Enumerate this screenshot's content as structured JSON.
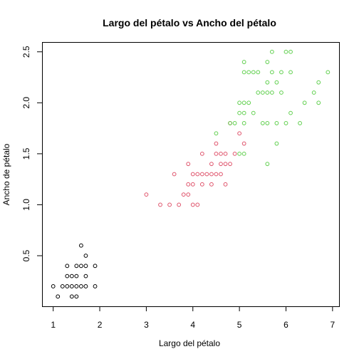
{
  "chart_data": {
    "type": "scatter",
    "title": "Largo del pétalo vs Ancho del pétalo",
    "xlabel": "Largo del pétalo",
    "ylabel": "Ancho de pétalo",
    "xlim": [
      0.76,
      7.14
    ],
    "ylim": [
      0.004,
      2.596
    ],
    "xticks": [
      "1",
      "2",
      "3",
      "4",
      "5",
      "6",
      "7"
    ],
    "yticks": [
      "0.5",
      "1.0",
      "1.5",
      "2.0",
      "2.5"
    ],
    "grid": false,
    "legend": "none",
    "series": [
      {
        "color": "#000000",
        "points": [
          [
            1.0,
            0.2
          ],
          [
            1.1,
            0.1
          ],
          [
            1.2,
            0.2
          ],
          [
            1.3,
            0.2
          ],
          [
            1.3,
            0.3
          ],
          [
            1.3,
            0.4
          ],
          [
            1.4,
            0.1
          ],
          [
            1.4,
            0.2
          ],
          [
            1.4,
            0.3
          ],
          [
            1.5,
            0.1
          ],
          [
            1.5,
            0.2
          ],
          [
            1.5,
            0.3
          ],
          [
            1.5,
            0.4
          ],
          [
            1.6,
            0.2
          ],
          [
            1.6,
            0.4
          ],
          [
            1.6,
            0.6
          ],
          [
            1.7,
            0.2
          ],
          [
            1.7,
            0.3
          ],
          [
            1.7,
            0.4
          ],
          [
            1.7,
            0.5
          ],
          [
            1.9,
            0.2
          ],
          [
            1.9,
            0.4
          ]
        ]
      },
      {
        "color": "#DF536B",
        "points": [
          [
            3.0,
            1.1
          ],
          [
            3.3,
            1.0
          ],
          [
            3.5,
            1.0
          ],
          [
            3.6,
            1.3
          ],
          [
            3.7,
            1.0
          ],
          [
            3.8,
            1.1
          ],
          [
            3.9,
            1.1
          ],
          [
            3.9,
            1.2
          ],
          [
            3.9,
            1.4
          ],
          [
            4.0,
            1.0
          ],
          [
            4.0,
            1.2
          ],
          [
            4.0,
            1.3
          ],
          [
            4.1,
            1.0
          ],
          [
            4.1,
            1.3
          ],
          [
            4.2,
            1.2
          ],
          [
            4.2,
            1.3
          ],
          [
            4.2,
            1.5
          ],
          [
            4.3,
            1.3
          ],
          [
            4.4,
            1.2
          ],
          [
            4.4,
            1.3
          ],
          [
            4.4,
            1.4
          ],
          [
            4.5,
            1.3
          ],
          [
            4.5,
            1.5
          ],
          [
            4.5,
            1.6
          ],
          [
            4.6,
            1.3
          ],
          [
            4.6,
            1.4
          ],
          [
            4.6,
            1.5
          ],
          [
            4.7,
            1.2
          ],
          [
            4.7,
            1.4
          ],
          [
            4.7,
            1.5
          ],
          [
            4.8,
            1.4
          ],
          [
            4.8,
            1.8
          ],
          [
            4.9,
            1.5
          ],
          [
            5.0,
            1.7
          ],
          [
            5.1,
            1.6
          ]
        ]
      },
      {
        "color": "#61D04F",
        "points": [
          [
            4.5,
            1.7
          ],
          [
            4.8,
            1.8
          ],
          [
            4.9,
            1.8
          ],
          [
            5.0,
            1.5
          ],
          [
            5.0,
            2.0
          ],
          [
            5.0,
            1.9
          ],
          [
            5.1,
            1.5
          ],
          [
            5.1,
            1.8
          ],
          [
            5.1,
            1.9
          ],
          [
            5.1,
            2.0
          ],
          [
            5.1,
            2.3
          ],
          [
            5.1,
            2.4
          ],
          [
            5.2,
            2.0
          ],
          [
            5.2,
            2.3
          ],
          [
            5.3,
            1.9
          ],
          [
            5.3,
            2.3
          ],
          [
            5.4,
            2.1
          ],
          [
            5.4,
            2.3
          ],
          [
            5.5,
            1.8
          ],
          [
            5.5,
            2.1
          ],
          [
            5.6,
            1.4
          ],
          [
            5.6,
            1.8
          ],
          [
            5.6,
            2.1
          ],
          [
            5.6,
            2.2
          ],
          [
            5.6,
            2.4
          ],
          [
            5.7,
            2.1
          ],
          [
            5.7,
            2.3
          ],
          [
            5.7,
            2.5
          ],
          [
            5.8,
            1.6
          ],
          [
            5.8,
            1.8
          ],
          [
            5.8,
            2.2
          ],
          [
            5.9,
            2.1
          ],
          [
            5.9,
            2.3
          ],
          [
            6.0,
            1.8
          ],
          [
            6.0,
            2.5
          ],
          [
            6.1,
            1.9
          ],
          [
            6.1,
            2.3
          ],
          [
            6.1,
            2.5
          ],
          [
            6.3,
            1.8
          ],
          [
            6.4,
            2.0
          ],
          [
            6.6,
            2.1
          ],
          [
            6.7,
            2.0
          ],
          [
            6.7,
            2.2
          ],
          [
            6.9,
            2.3
          ]
        ]
      }
    ]
  }
}
